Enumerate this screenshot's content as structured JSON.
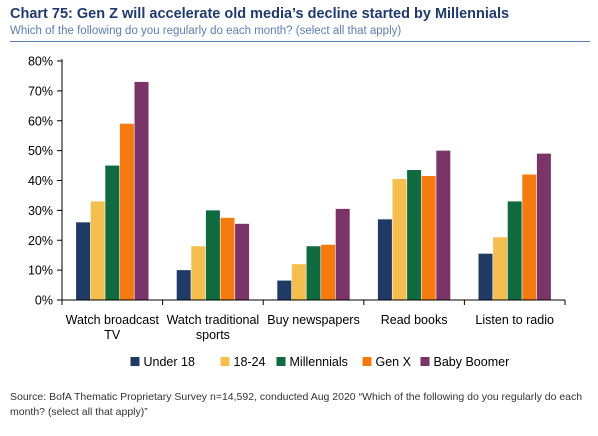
{
  "header": {
    "title": "Chart 75: Gen Z will accelerate old media’s decline started by Millennials",
    "subtitle": "Which of the following do you regularly do each month? (select all that apply)"
  },
  "footer": {
    "source": "Source: BofA Thematic Proprietary Survey n=14,592, conducted Aug 2020 “Which of the following do you regularly do each month? (select all that apply)”"
  },
  "chart_data": {
    "type": "bar",
    "categories": [
      [
        "Watch broadcast",
        "TV"
      ],
      [
        "Watch traditional",
        "sports"
      ],
      [
        "Buy newspapers"
      ],
      [
        "Read books"
      ],
      [
        "Listen to radio"
      ]
    ],
    "series": [
      {
        "name": "Under 18",
        "color": "#1f3a64",
        "values": [
          26,
          10,
          6.5,
          27,
          15.5
        ]
      },
      {
        "name": "18-24",
        "color": "#f5bf4f",
        "values": [
          33,
          18,
          12,
          40.5,
          21
        ]
      },
      {
        "name": "Millennials",
        "color": "#0f6b3f",
        "values": [
          45,
          30,
          18,
          43.5,
          33
        ]
      },
      {
        "name": "Gen X",
        "color": "#f57a10",
        "values": [
          59,
          27.5,
          18.5,
          41.5,
          42
        ]
      },
      {
        "name": "Baby Boomer",
        "color": "#7a3468",
        "values": [
          73,
          25.5,
          30.5,
          50,
          49
        ]
      }
    ],
    "y_ticks": [
      "0%",
      "10%",
      "20%",
      "30%",
      "40%",
      "50%",
      "60%",
      "70%",
      "80%"
    ],
    "ylim": [
      0,
      80
    ],
    "grid": false,
    "legend_position": "bottom"
  }
}
